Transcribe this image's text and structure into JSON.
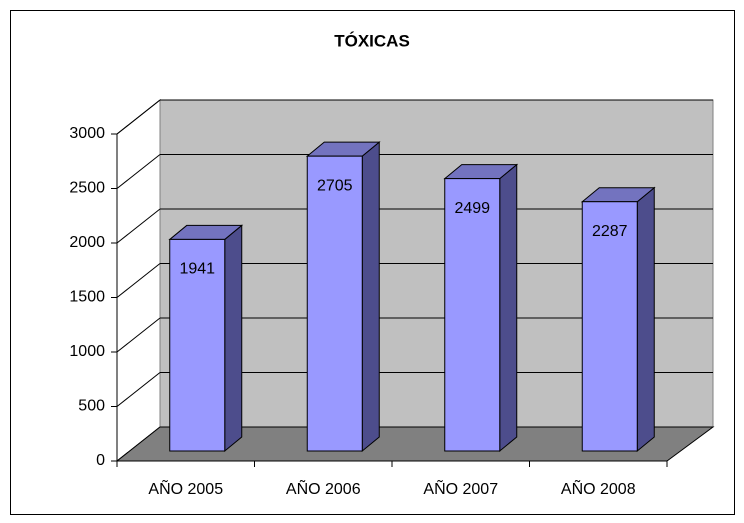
{
  "chart_data": {
    "type": "bar",
    "title": "TÓXICAS",
    "categories": [
      "AÑO 2005",
      "AÑO 2006",
      "AÑO 2007",
      "AÑO 2008"
    ],
    "values": [
      1941,
      2705,
      2499,
      2287
    ],
    "color": "#9999FF",
    "ylim": [
      0,
      3000
    ],
    "yticks": [
      0,
      500,
      1000,
      1500,
      2000,
      2500,
      3000
    ],
    "grid": true
  }
}
